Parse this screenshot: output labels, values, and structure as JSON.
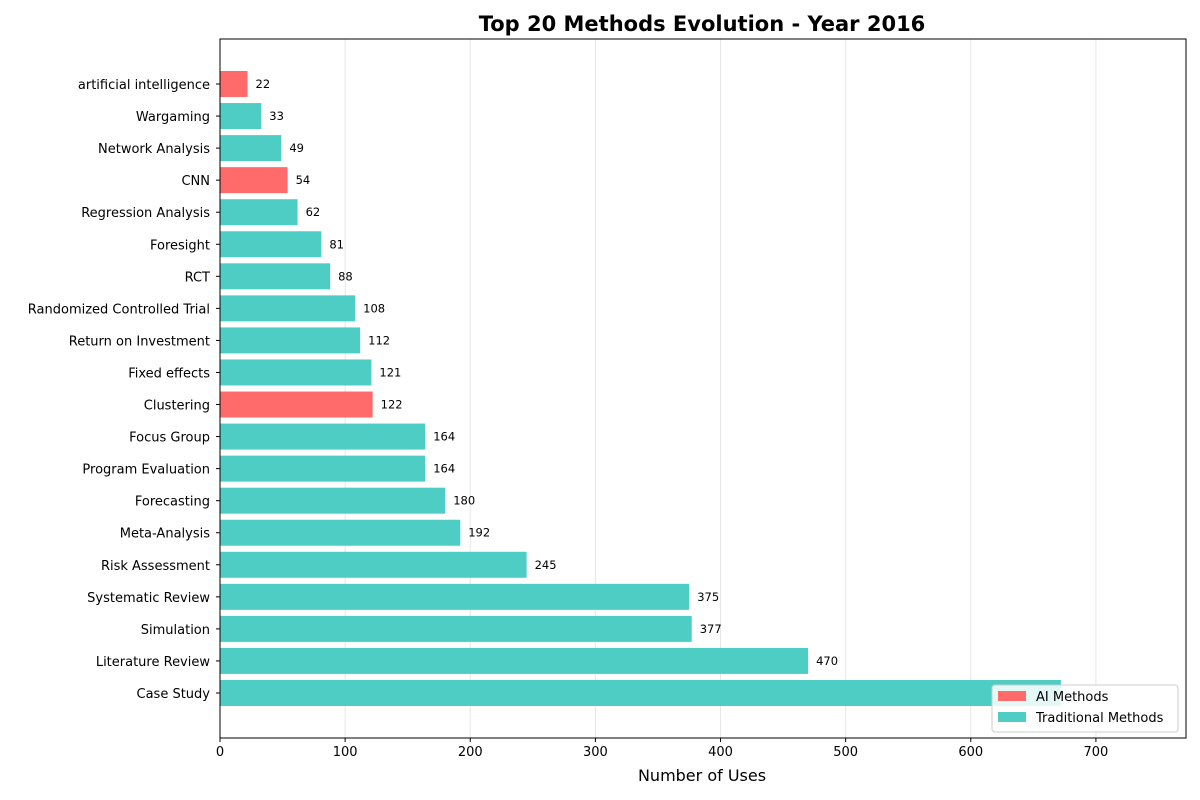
{
  "chart_data": {
    "type": "bar",
    "orientation": "horizontal",
    "title": "Top 20 Methods Evolution - Year 2016",
    "xlabel": "Number of Uses",
    "ylabel": "",
    "xlim": [
      0,
      772
    ],
    "xticks": [
      0,
      100,
      200,
      300,
      400,
      500,
      600,
      700
    ],
    "grid": "vertical",
    "legend_position": "bottom-right",
    "colors": {
      "ai": "#ff6b6b",
      "traditional": "#4ecdc4"
    },
    "legend": [
      {
        "label": "AI Methods",
        "group": "ai"
      },
      {
        "label": "Traditional Methods",
        "group": "traditional"
      }
    ],
    "categories": [
      "artificial intelligence",
      "Wargaming",
      "Network Analysis",
      "CNN",
      "Regression Analysis",
      "Foresight",
      "RCT",
      "Randomized Controlled Trial",
      "Return on Investment",
      "Fixed effects",
      "Clustering",
      "Focus Group",
      "Program Evaluation",
      "Forecasting",
      "Meta-Analysis",
      "Risk Assessment",
      "Systematic Review",
      "Simulation",
      "Literature Review",
      "Case Study"
    ],
    "values": [
      22,
      33,
      49,
      54,
      62,
      81,
      88,
      108,
      112,
      121,
      122,
      164,
      164,
      180,
      192,
      245,
      375,
      377,
      470,
      672
    ],
    "value_labels": [
      "22",
      "33",
      "49",
      "54",
      "62",
      "81",
      "88",
      "108",
      "112",
      "121",
      "122",
      "164",
      "164",
      "180",
      "192",
      "245",
      "375",
      "377",
      "470",
      ""
    ],
    "groups": [
      "ai",
      "traditional",
      "traditional",
      "ai",
      "traditional",
      "traditional",
      "traditional",
      "traditional",
      "traditional",
      "traditional",
      "ai",
      "traditional",
      "traditional",
      "traditional",
      "traditional",
      "traditional",
      "traditional",
      "traditional",
      "traditional",
      "traditional"
    ]
  }
}
